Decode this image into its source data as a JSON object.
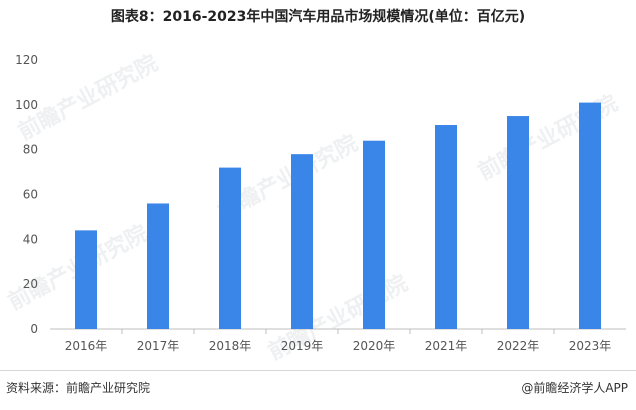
{
  "title": "图表8：2016-2023年中国汽车用品市场规模情况(单位：百亿元)",
  "footer": {
    "source": "资料来源：前瞻产业研究院",
    "brand": "@前瞻经济学人APP"
  },
  "watermark": "前瞻产业研究院",
  "colors": {
    "bar": "#3A86E8",
    "axis": "#bfbfbf",
    "tick_text": "#555555"
  },
  "chart_data": {
    "type": "bar",
    "title": "图表8：2016-2023年中国汽车用品市场规模情况(单位：百亿元)",
    "xlabel": "",
    "ylabel": "",
    "categories": [
      "2016年",
      "2017年",
      "2018年",
      "2019年",
      "2020年",
      "2021年",
      "2022年",
      "2023年"
    ],
    "values": [
      44,
      56,
      72,
      78,
      84,
      91,
      95,
      101
    ],
    "ylim": [
      0,
      120
    ],
    "yticks": [
      0,
      20,
      40,
      60,
      80,
      100,
      120
    ],
    "grid": false,
    "legend": "none"
  }
}
